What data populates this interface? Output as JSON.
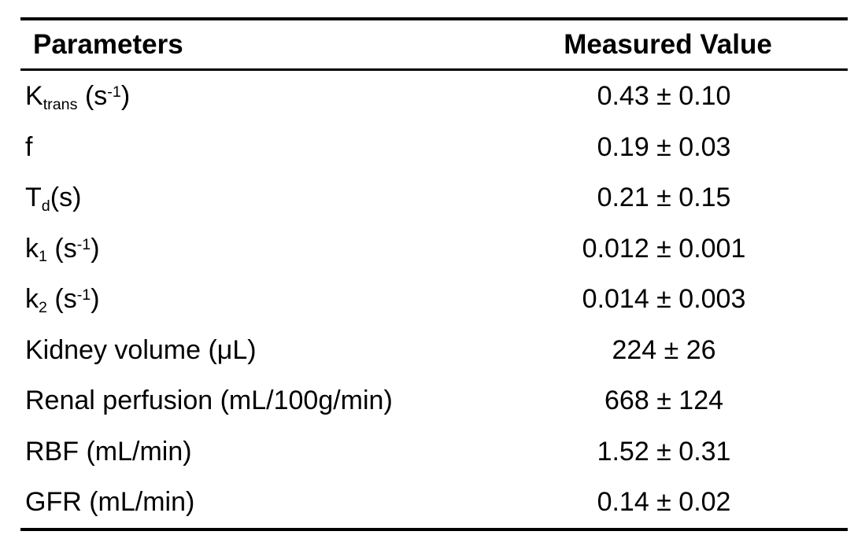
{
  "colors": {
    "text": "#000000",
    "background": "#ffffff",
    "rule": "#000000"
  },
  "table": {
    "columns": [
      {
        "label": "Parameters",
        "align": "left"
      },
      {
        "label": "Measured Value",
        "align": "center"
      }
    ],
    "rows": [
      {
        "param": [
          {
            "text": "K"
          },
          {
            "text": "trans",
            "style": "sub"
          },
          {
            "text": " (s"
          },
          {
            "text": "-1",
            "style": "sup"
          },
          {
            "text": ")"
          }
        ],
        "value": "0.43 ± 0.10"
      },
      {
        "param": [
          {
            "text": "f"
          }
        ],
        "value": "0.19 ± 0.03"
      },
      {
        "param": [
          {
            "text": "T"
          },
          {
            "text": "d",
            "style": "sub"
          },
          {
            "text": "(s)"
          }
        ],
        "value": "0.21 ± 0.15"
      },
      {
        "param": [
          {
            "text": "k"
          },
          {
            "text": "1",
            "style": "sub"
          },
          {
            "text": " (s"
          },
          {
            "text": "-1",
            "style": "sup"
          },
          {
            "text": ")"
          }
        ],
        "value": "0.012 ± 0.001"
      },
      {
        "param": [
          {
            "text": "k"
          },
          {
            "text": "2",
            "style": "sub"
          },
          {
            "text": " (s"
          },
          {
            "text": "-1",
            "style": "sup"
          },
          {
            "text": ")"
          }
        ],
        "value": "0.014 ± 0.003"
      },
      {
        "param": [
          {
            "text": "Kidney volume (μL)"
          }
        ],
        "value": "224 ± 26"
      },
      {
        "param": [
          {
            "text": "Renal perfusion (mL/100g/min)"
          }
        ],
        "value": "668 ± 124"
      },
      {
        "param": [
          {
            "text": "RBF (mL/min)"
          }
        ],
        "value": "1.52 ± 0.31"
      },
      {
        "param": [
          {
            "text": "GFR (mL/min)"
          }
        ],
        "value": "0.14 ± 0.02"
      }
    ]
  }
}
